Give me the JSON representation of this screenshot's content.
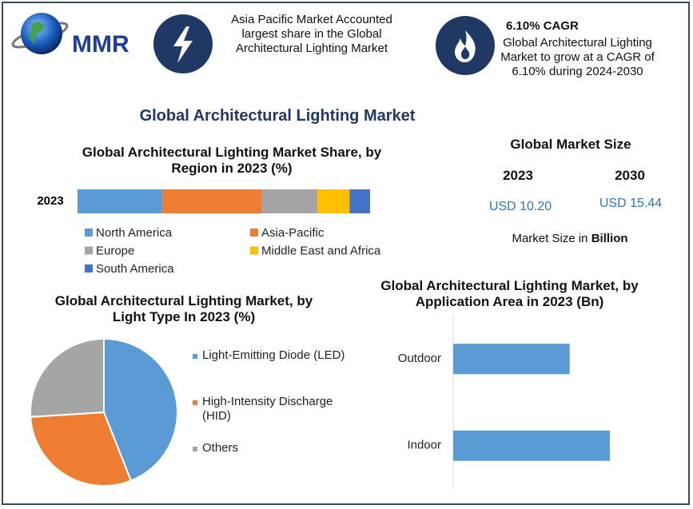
{
  "header": {
    "logo": "MMR",
    "highlight": "Asia Pacific Market Accounted largest share in the Global Architectural Lighting Market",
    "cagr_title": "6.10% CAGR",
    "cagr_text": "Global Architectural Lighting Market to grow at a CAGR of 6.10% during 2024-2030"
  },
  "title": "Global Architectural Lighting Market",
  "market_size": {
    "title": "Global Market Size",
    "years": [
      "2023",
      "2030"
    ],
    "values": [
      "USD 10.20",
      "USD 15.44"
    ],
    "note": "Market Size in",
    "unit": "Billion"
  },
  "chart_data": [
    {
      "type": "bar",
      "stacked": true,
      "orientation": "horizontal",
      "title": "Global Architectural Lighting Market Share, by Region in 2023 (%)",
      "categories": [
        "2023"
      ],
      "xlim": [
        0,
        100
      ],
      "series": [
        {
          "name": "North America",
          "color": "#5b9bd5",
          "values": [
            29
          ]
        },
        {
          "name": "Asia-Pacific",
          "color": "#ed7d31",
          "values": [
            34
          ]
        },
        {
          "name": "Europe",
          "color": "#a5a5a5",
          "values": [
            19
          ]
        },
        {
          "name": "Middle East and Africa",
          "color": "#ffc000",
          "values": [
            11
          ]
        },
        {
          "name": "South America",
          "color": "#4472c4",
          "values": [
            7
          ]
        }
      ]
    },
    {
      "type": "pie",
      "title": "Global Architectural Lighting Market, by Light Type In 2023 (%)",
      "labels": [
        "Light-Emitting Diode (LED)",
        "High-Intensity Discharge (HID)",
        "Others"
      ],
      "values": [
        44,
        30,
        26
      ],
      "colors": [
        "#5b9bd5",
        "#ed7d31",
        "#a5a5a5"
      ]
    },
    {
      "type": "bar",
      "orientation": "horizontal",
      "title": "Global Architectural Lighting Market, by Application Area in 2023 (Bn)",
      "categories": [
        "Outdoor",
        "Indoor"
      ],
      "values": [
        4.35,
        5.85
      ],
      "color": "#5b9bd5",
      "xlim": [
        0,
        6
      ]
    }
  ]
}
